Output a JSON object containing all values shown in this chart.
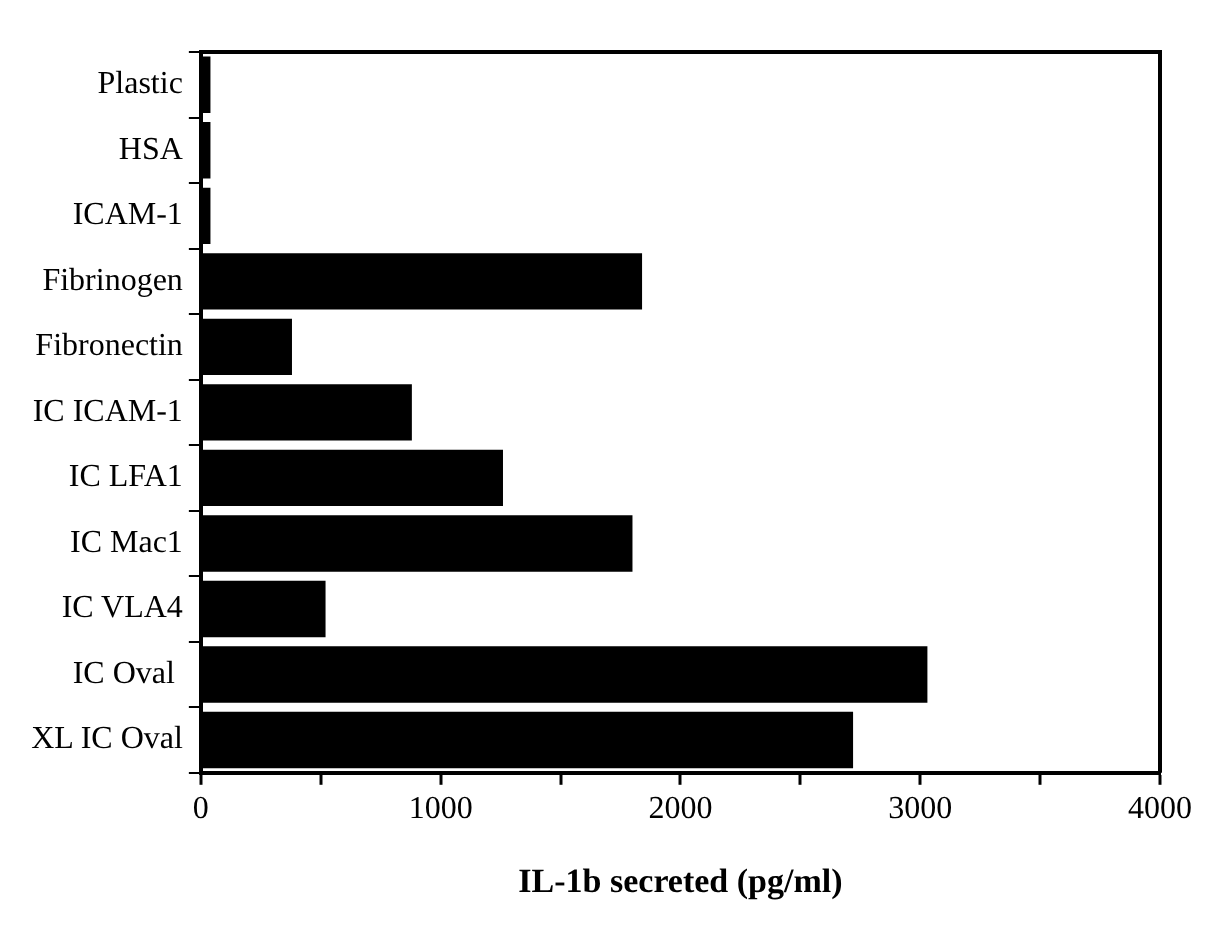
{
  "chart_data": {
    "type": "bar",
    "orientation": "horizontal",
    "xlabel": "IL-1b secreted (pg/ml)",
    "categories": [
      "Plastic",
      "HSA",
      "ICAM-1",
      "Fibrinogen",
      "Fibronectin",
      "IC ICAM-1",
      "IC LFA1",
      "IC Mac1",
      "IC VLA4",
      "IC Oval ",
      "XL IC Oval"
    ],
    "values": [
      40,
      40,
      40,
      1840,
      380,
      880,
      1260,
      1800,
      520,
      3030,
      2720
    ],
    "color": "#000000",
    "xlim": [
      0,
      4000
    ],
    "xticks": [
      0,
      {
        "value": 500,
        "label": null
      },
      1000,
      {
        "value": 1500,
        "label": null
      },
      2000,
      {
        "value": 2500,
        "label": null
      },
      3000,
      {
        "value": 3500,
        "label": null
      },
      4000
    ],
    "grid": false,
    "legend": false
  }
}
